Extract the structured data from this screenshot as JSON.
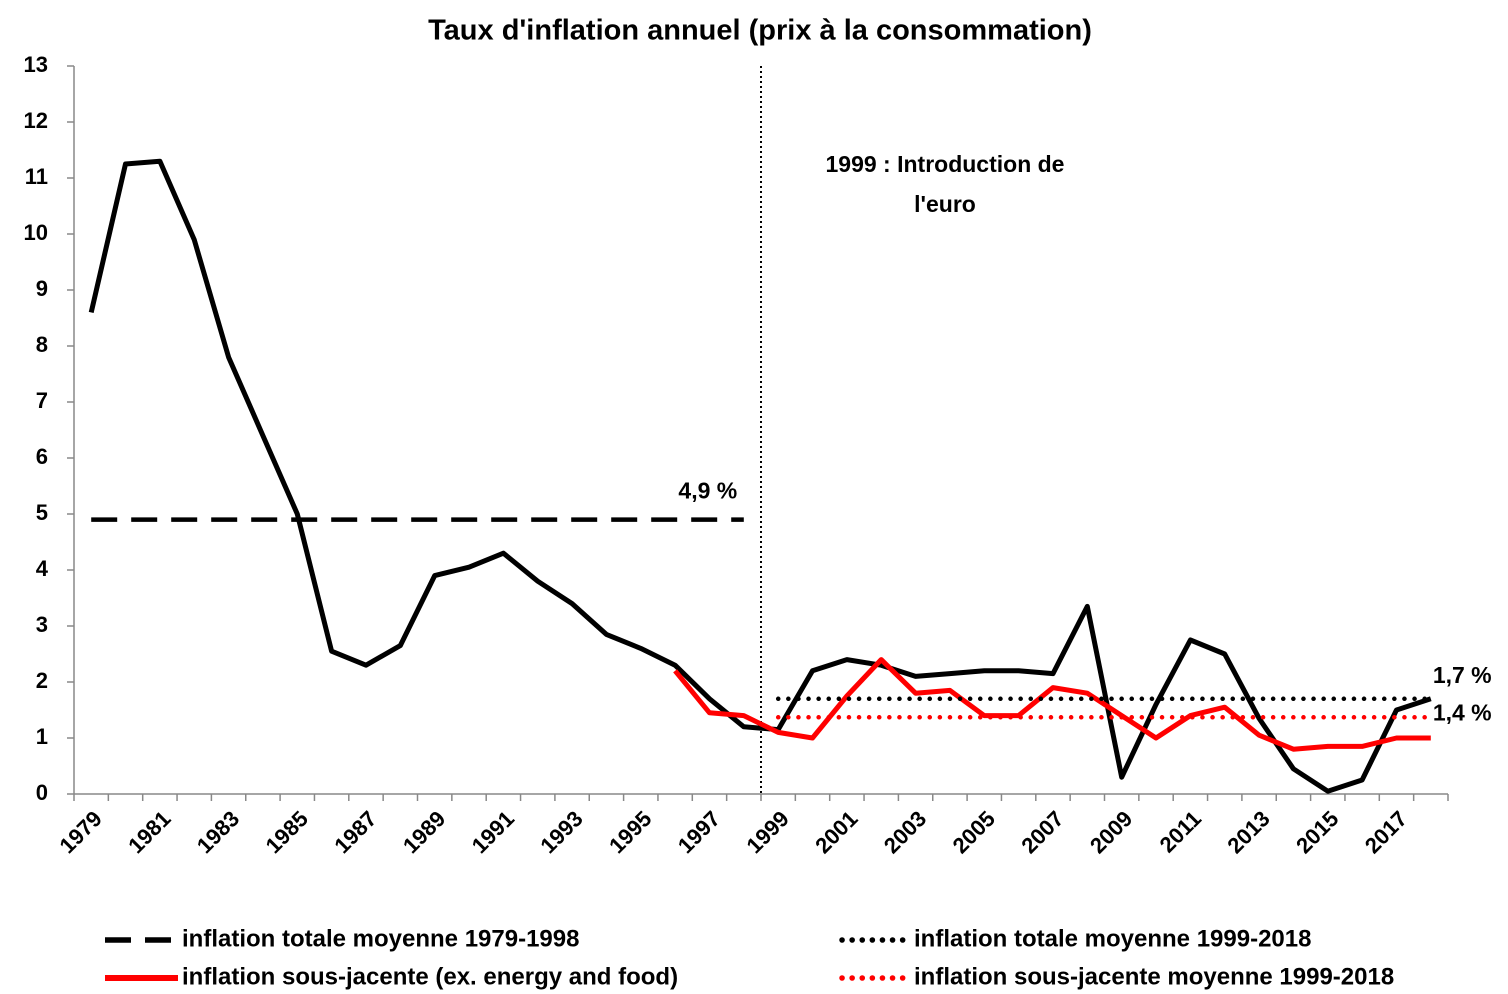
{
  "chart_data": {
    "type": "line",
    "title": "Taux d'inflation annuel (prix à la consommation)",
    "categories": [
      "1979",
      null,
      "1981",
      null,
      "1983",
      null,
      "1985",
      null,
      "1987",
      null,
      "1989",
      null,
      "1991",
      null,
      "1993",
      null,
      "1995",
      null,
      "1997",
      null,
      "1999",
      null,
      "2001",
      null,
      "2003",
      null,
      "2005",
      null,
      "2007",
      null,
      "2009",
      null,
      "2011",
      null,
      "2013",
      null,
      "2015",
      null,
      "2017",
      null
    ],
    "ylim": [
      0,
      13
    ],
    "yticks": [
      0,
      1,
      2,
      3,
      4,
      5,
      6,
      7,
      8,
      9,
      10,
      11,
      12,
      13
    ],
    "grid": false,
    "series": [
      {
        "color": "#000000",
        "style": "solid",
        "values": [
          8.6,
          11.25,
          11.3,
          9.9,
          7.8,
          6.4,
          5.0,
          2.55,
          2.3,
          2.65,
          3.9,
          4.05,
          4.3,
          3.8,
          3.4,
          2.85,
          2.6,
          2.3,
          1.7,
          1.2,
          1.15,
          2.2,
          2.4,
          2.3,
          2.1,
          2.15,
          2.2,
          2.2,
          2.15,
          3.35,
          0.3,
          1.6,
          2.75,
          2.5,
          1.35,
          0.45,
          0.05,
          0.25,
          1.5,
          1.7
        ]
      },
      {
        "name": "inflation totale moyenne 1979-1998",
        "color": "#000000",
        "style": "dashed",
        "values": [
          4.9,
          4.9,
          4.9,
          4.9,
          4.9,
          4.9,
          4.9,
          4.9,
          4.9,
          4.9,
          4.9,
          4.9,
          4.9,
          4.9,
          4.9,
          4.9,
          4.9,
          4.9,
          4.9,
          4.9,
          null,
          null,
          null,
          null,
          null,
          null,
          null,
          null,
          null,
          null,
          null,
          null,
          null,
          null,
          null,
          null,
          null,
          null,
          null,
          null
        ],
        "value_labels": [
          null,
          null,
          null,
          null,
          null,
          null,
          null,
          null,
          null,
          null,
          null,
          null,
          null,
          null,
          null,
          null,
          null,
          null,
          null,
          "4,9 %",
          null,
          null,
          null,
          null,
          null,
          null,
          null,
          null,
          null,
          null,
          null,
          null,
          null,
          null,
          null,
          null,
          null,
          null,
          null,
          null
        ]
      },
      {
        "name": "inflation sous-jacente (ex. energy and food)",
        "color": "#ff0000",
        "style": "solid",
        "values": [
          null,
          null,
          null,
          null,
          null,
          null,
          null,
          null,
          null,
          null,
          null,
          null,
          null,
          null,
          null,
          null,
          null,
          2.2,
          1.45,
          1.4,
          1.1,
          1.0,
          1.75,
          2.4,
          1.8,
          1.85,
          1.4,
          1.4,
          1.9,
          1.8,
          1.4,
          1.0,
          1.4,
          1.55,
          1.05,
          0.8,
          0.85,
          0.85,
          1.0,
          1.0
        ]
      },
      {
        "name": "inflation totale moyenne 1999-2018",
        "color": "#000000",
        "style": "dotted",
        "values": [
          null,
          null,
          null,
          null,
          null,
          null,
          null,
          null,
          null,
          null,
          null,
          null,
          null,
          null,
          null,
          null,
          null,
          null,
          null,
          null,
          1.7,
          1.7,
          1.7,
          1.7,
          1.7,
          1.7,
          1.7,
          1.7,
          1.7,
          1.7,
          1.7,
          1.7,
          1.7,
          1.7,
          1.7,
          1.7,
          1.7,
          1.7,
          1.7,
          1.7
        ],
        "value_labels": [
          null,
          null,
          null,
          null,
          null,
          null,
          null,
          null,
          null,
          null,
          null,
          null,
          null,
          null,
          null,
          null,
          null,
          null,
          null,
          null,
          null,
          null,
          null,
          null,
          null,
          null,
          null,
          null,
          null,
          null,
          null,
          null,
          null,
          null,
          null,
          null,
          null,
          null,
          null,
          "1,7 %"
        ]
      },
      {
        "name": "inflation sous-jacente moyenne 1999-2018",
        "color": "#ff0000",
        "style": "dotted",
        "values": [
          null,
          null,
          null,
          null,
          null,
          null,
          null,
          null,
          null,
          null,
          null,
          null,
          null,
          null,
          null,
          null,
          null,
          null,
          null,
          null,
          1.37,
          1.37,
          1.37,
          1.37,
          1.37,
          1.37,
          1.37,
          1.37,
          1.37,
          1.37,
          1.37,
          1.37,
          1.37,
          1.37,
          1.37,
          1.37,
          1.37,
          1.37,
          1.37,
          1.37
        ],
        "value_labels": [
          null,
          null,
          null,
          null,
          null,
          null,
          null,
          null,
          null,
          null,
          null,
          null,
          null,
          null,
          null,
          null,
          null,
          null,
          null,
          null,
          null,
          null,
          null,
          null,
          null,
          null,
          null,
          null,
          null,
          null,
          null,
          null,
          null,
          null,
          null,
          null,
          null,
          null,
          null,
          "1,4 %"
        ]
      }
    ],
    "annotation": {
      "category": "1999",
      "lines": [
        "1999 : Introduction de",
        "l'euro"
      ]
    }
  }
}
